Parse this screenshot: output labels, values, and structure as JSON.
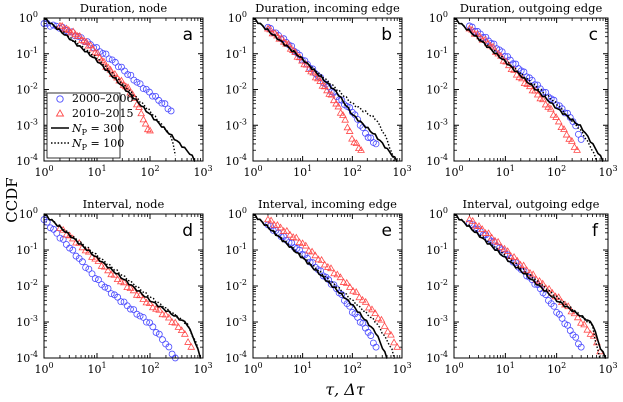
{
  "chart_data": {
    "type": "line",
    "ylabel": "CCDF",
    "xlabel": "τ, Δτ",
    "xscale": "log",
    "yscale": "log",
    "xlim": [
      1,
      1000
    ],
    "ylim": [
      0.0001,
      1
    ],
    "xticks": [
      {
        "base": "10",
        "exp": "0"
      },
      {
        "base": "10",
        "exp": "1"
      },
      {
        "base": "10",
        "exp": "2"
      },
      {
        "base": "10",
        "exp": "3"
      }
    ],
    "yticks": [
      {
        "base": "10",
        "exp": "0"
      },
      {
        "base": "10",
        "exp": "-1"
      },
      {
        "base": "10",
        "exp": "-2"
      },
      {
        "base": "10",
        "exp": "-3"
      },
      {
        "base": "10",
        "exp": "-4"
      }
    ],
    "legend": [
      {
        "label": "2000–2006",
        "marker": "circle",
        "color": "#4a4aff"
      },
      {
        "label": "2010–2015",
        "marker": "triangle",
        "color": "#ff4a4a"
      },
      {
        "label_sym": "N",
        "label_sub": "P",
        "label_rest": " = 300",
        "style": "solid",
        "color": "#000000"
      },
      {
        "label_sym": "N",
        "label_sub": "P",
        "label_rest": " = 100",
        "style": "dotted",
        "color": "#000000"
      }
    ],
    "panels": [
      {
        "title": "Duration, node",
        "letter": "a",
        "series": [
          {
            "name": "2000–2006",
            "points": [
              [
                1.0,
                0.7
              ],
              [
                2.0,
                0.55
              ],
              [
                3.0,
                0.42
              ],
              [
                5.0,
                0.27
              ],
              [
                8.0,
                0.17
              ],
              [
                15.0,
                0.09
              ],
              [
                30.0,
                0.038
              ],
              [
                60.0,
                0.015
              ],
              [
                100.0,
                0.008
              ],
              [
                200.0,
                0.0035
              ],
              [
                250.0,
                0.0025
              ]
            ]
          },
          {
            "name": "2010–2015",
            "points": [
              [
                2.0,
                0.6
              ],
              [
                4.0,
                0.35
              ],
              [
                8.0,
                0.15
              ],
              [
                15.0,
                0.045
              ],
              [
                25.0,
                0.02
              ],
              [
                40.0,
                0.01
              ],
              [
                50.0,
                0.006
              ],
              [
                70.0,
                0.002
              ],
              [
                85.0,
                0.0009
              ],
              [
                100.0,
                0.0007
              ]
            ]
          },
          {
            "name": "NP = 300",
            "points": [
              [
                1.0,
                1.0
              ],
              [
                10.0,
                0.065
              ],
              [
                100.0,
                0.002
              ],
              [
                300.0,
                0.0004
              ],
              [
                600.0,
                0.00015
              ],
              [
                700.0,
                0.0001
              ]
            ]
          },
          {
            "name": "NP = 100",
            "points": [
              [
                1.0,
                1.0
              ],
              [
                10.0,
                0.075
              ],
              [
                100.0,
                0.0025
              ],
              [
                250.0,
                0.0005
              ],
              [
                300.0,
                0.00015
              ]
            ]
          }
        ]
      },
      {
        "title": "Duration, incoming edge",
        "letter": "b",
        "series": [
          {
            "name": "2000–2006",
            "points": [
              [
                2.0,
                0.55
              ],
              [
                5.0,
                0.2
              ],
              [
                10.0,
                0.07
              ],
              [
                20.0,
                0.025
              ],
              [
                50.0,
                0.006
              ],
              [
                100.0,
                0.0025
              ],
              [
                200.0,
                0.0005
              ],
              [
                300.0,
                0.0003
              ]
            ]
          },
          {
            "name": "2010–2015",
            "points": [
              [
                2.0,
                0.5
              ],
              [
                5.0,
                0.18
              ],
              [
                10.0,
                0.06
              ],
              [
                20.0,
                0.02
              ],
              [
                40.0,
                0.006
              ],
              [
                70.0,
                0.0015
              ],
              [
                100.0,
                0.0004
              ],
              [
                150.0,
                0.0002
              ]
            ]
          },
          {
            "name": "NP = 300",
            "points": [
              [
                1.0,
                1.0
              ],
              [
                10.0,
                0.07
              ],
              [
                50.0,
                0.008
              ],
              [
                100.0,
                0.002
              ],
              [
                300.0,
                0.0005
              ],
              [
                800.0,
                0.0001
              ]
            ]
          },
          {
            "name": "NP = 100",
            "points": [
              [
                1.0,
                1.0
              ],
              [
                10.0,
                0.07
              ],
              [
                50.0,
                0.01
              ],
              [
                100.0,
                0.004
              ],
              [
                300.0,
                0.0015
              ],
              [
                500.0,
                0.0004
              ],
              [
                700.0,
                0.0001
              ]
            ]
          }
        ]
      },
      {
        "title": "Duration, outgoing edge",
        "letter": "c",
        "series": [
          {
            "name": "2000–2006",
            "points": [
              [
                2.0,
                0.6
              ],
              [
                5.0,
                0.22
              ],
              [
                10.0,
                0.09
              ],
              [
                20.0,
                0.035
              ],
              [
                50.0,
                0.01
              ],
              [
                100.0,
                0.004
              ],
              [
                200.0,
                0.0015
              ],
              [
                300.0,
                0.0004
              ]
            ]
          },
          {
            "name": "2010–2015",
            "points": [
              [
                2.0,
                0.5
              ],
              [
                5.0,
                0.18
              ],
              [
                10.0,
                0.06
              ],
              [
                20.0,
                0.02
              ],
              [
                40.0,
                0.008
              ],
              [
                80.0,
                0.0025
              ],
              [
                150.0,
                0.0006
              ],
              [
                250.0,
                0.0002
              ]
            ]
          },
          {
            "name": "NP = 300",
            "points": [
              [
                1.0,
                1.0
              ],
              [
                10.0,
                0.06
              ],
              [
                100.0,
                0.003
              ],
              [
                300.0,
                0.0009
              ],
              [
                600.0,
                0.0002
              ],
              [
                800.0,
                0.0001
              ]
            ]
          },
          {
            "name": "NP = 100",
            "points": [
              [
                1.0,
                1.0
              ],
              [
                10.0,
                0.065
              ],
              [
                100.0,
                0.004
              ],
              [
                300.0,
                0.0007
              ],
              [
                500.0,
                0.0002
              ],
              [
                600.0,
                0.0001
              ]
            ]
          }
        ]
      },
      {
        "title": "Interval, node",
        "letter": "d",
        "series": [
          {
            "name": "2000–2006",
            "points": [
              [
                1.0,
                0.7
              ],
              [
                3.0,
                0.12
              ],
              [
                5.0,
                0.05
              ],
              [
                10.0,
                0.015
              ],
              [
                20.0,
                0.006
              ],
              [
                50.0,
                0.002
              ],
              [
                100.0,
                0.0009
              ],
              [
                200.0,
                0.00025
              ],
              [
                300.0,
                0.0001
              ]
            ]
          },
          {
            "name": "2010–2015",
            "points": [
              [
                2.0,
                0.4
              ],
              [
                5.0,
                0.13
              ],
              [
                10.0,
                0.05
              ],
              [
                20.0,
                0.02
              ],
              [
                50.0,
                0.007
              ],
              [
                100.0,
                0.003
              ],
              [
                200.0,
                0.0015
              ],
              [
                400.0,
                0.0006
              ],
              [
                600.0,
                0.0002
              ]
            ]
          },
          {
            "name": "NP = 300",
            "points": [
              [
                1.0,
                1.0
              ],
              [
                10.0,
                0.06
              ],
              [
                100.0,
                0.004
              ],
              [
                500.0,
                0.0009
              ],
              [
                700.0,
                0.0003
              ],
              [
                900.0,
                0.0001
              ]
            ]
          },
          {
            "name": "NP = 100",
            "points": [
              [
                1.0,
                1.0
              ],
              [
                10.0,
                0.07
              ],
              [
                100.0,
                0.005
              ],
              [
                500.0,
                0.0009
              ],
              [
                800.0,
                0.0002
              ]
            ]
          }
        ]
      },
      {
        "title": "Interval, incoming edge",
        "letter": "e",
        "series": [
          {
            "name": "2000–2006",
            "points": [
              [
                2.0,
                0.5
              ],
              [
                5.0,
                0.18
              ],
              [
                10.0,
                0.08
              ],
              [
                20.0,
                0.03
              ],
              [
                50.0,
                0.008
              ],
              [
                100.0,
                0.002
              ],
              [
                200.0,
                0.0006
              ],
              [
                300.0,
                0.0002
              ]
            ]
          },
          {
            "name": "2010–2015",
            "points": [
              [
                2.0,
                0.7
              ],
              [
                5.0,
                0.3
              ],
              [
                10.0,
                0.15
              ],
              [
                20.0,
                0.06
              ],
              [
                50.0,
                0.02
              ],
              [
                100.0,
                0.008
              ],
              [
                200.0,
                0.003
              ],
              [
                400.0,
                0.001
              ],
              [
                600.0,
                0.0004
              ],
              [
                800.0,
                0.0002
              ]
            ]
          },
          {
            "name": "NP = 300",
            "points": [
              [
                1.0,
                1.0
              ],
              [
                10.0,
                0.06
              ],
              [
                100.0,
                0.003
              ],
              [
                300.0,
                0.0005
              ],
              [
                500.0,
                0.0001
              ]
            ]
          },
          {
            "name": "NP = 100",
            "points": [
              [
                1.0,
                1.0
              ],
              [
                10.0,
                0.065
              ],
              [
                100.0,
                0.004
              ],
              [
                300.0,
                0.001
              ],
              [
                600.0,
                0.0002
              ],
              [
                700.0,
                0.0001
              ]
            ]
          }
        ]
      },
      {
        "title": "Interval, outgoing edge",
        "letter": "f",
        "series": [
          {
            "name": "2000–2006",
            "points": [
              [
                2.0,
                0.55
              ],
              [
                5.0,
                0.2
              ],
              [
                10.0,
                0.08
              ],
              [
                20.0,
                0.03
              ],
              [
                50.0,
                0.008
              ],
              [
                100.0,
                0.002
              ],
              [
                200.0,
                0.0005
              ],
              [
                300.0,
                0.0002
              ]
            ]
          },
          {
            "name": "2010–2015",
            "points": [
              [
                2.0,
                0.7
              ],
              [
                5.0,
                0.25
              ],
              [
                10.0,
                0.1
              ],
              [
                20.0,
                0.04
              ],
              [
                50.0,
                0.012
              ],
              [
                100.0,
                0.005
              ],
              [
                200.0,
                0.002
              ],
              [
                400.0,
                0.0006
              ],
              [
                600.0,
                0.0003
              ],
              [
                700.0,
                0.00015
              ]
            ]
          },
          {
            "name": "NP = 300",
            "points": [
              [
                1.0,
                1.0
              ],
              [
                10.0,
                0.06
              ],
              [
                100.0,
                0.004
              ],
              [
                500.0,
                0.0009
              ],
              [
                700.0,
                0.0002
              ],
              [
                900.0,
                0.0001
              ]
            ]
          },
          {
            "name": "NP = 100",
            "points": [
              [
                1.0,
                1.0
              ],
              [
                10.0,
                0.07
              ],
              [
                100.0,
                0.005
              ],
              [
                500.0,
                0.0008
              ],
              [
                600.0,
                0.0002
              ],
              [
                700.0,
                0.0001
              ]
            ]
          }
        ]
      }
    ]
  }
}
